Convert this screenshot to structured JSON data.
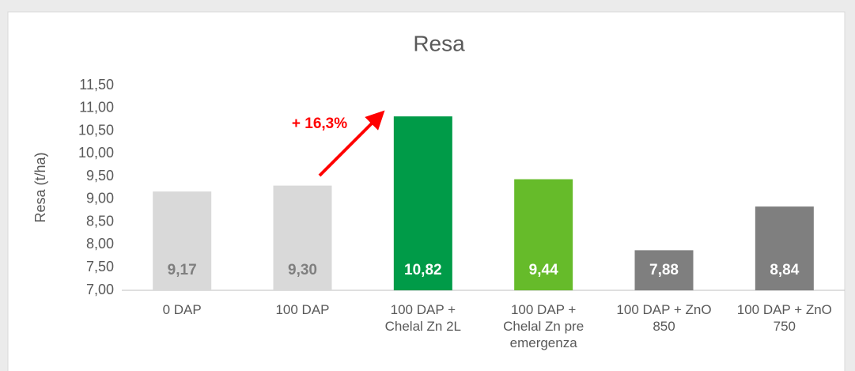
{
  "chart_data": {
    "type": "bar",
    "title": "Resa",
    "y_label": "Resa (t/ha)",
    "categories": [
      "0 DAP",
      "100 DAP",
      "100 DAP + Chelal Zn 2L",
      "100 DAP + Chelal Zn pre emergenza",
      "100 DAP + ZnO 850",
      "100 DAP + ZnO 750"
    ],
    "values": [
      9.17,
      9.3,
      10.82,
      9.44,
      7.88,
      8.84
    ],
    "value_labels": [
      "9,17",
      "9,30",
      "10,82",
      "9,44",
      "7,88",
      "8,84"
    ],
    "colors": [
      "#d9d9d9",
      "#d9d9d9",
      "#009b48",
      "#66bb2a",
      "#7f7f7f",
      "#7f7f7f"
    ],
    "ylim": [
      7,
      11.5
    ],
    "yticks": [
      {
        "value": 7,
        "label": "7,00"
      },
      {
        "value": 7.5,
        "label": "7,50"
      },
      {
        "value": 8,
        "label": "8,00"
      },
      {
        "value": 8.5,
        "label": "8,50"
      },
      {
        "value": 9,
        "label": "9,00"
      },
      {
        "value": 9.5,
        "label": "9,50"
      },
      {
        "value": 10,
        "label": "10,00"
      },
      {
        "value": 10.5,
        "label": "10,50"
      },
      {
        "value": 11,
        "label": "11,00"
      },
      {
        "value": 11.5,
        "label": "11,50"
      }
    ],
    "annotation": "+ 16,3%"
  }
}
